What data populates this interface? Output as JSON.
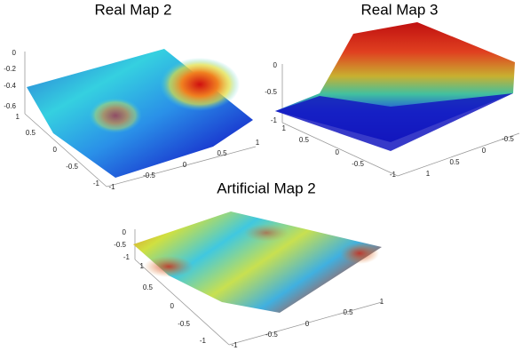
{
  "panels": [
    {
      "title": "Real Map 2",
      "z_ticks": [
        "0",
        "-0.2",
        "-0.4",
        "-0.6"
      ],
      "left_ticks": [
        "1",
        "0.5",
        "0",
        "-0.5",
        "-1"
      ],
      "bottom_ticks": [
        "-1",
        "-0.5",
        "0",
        "0.5",
        "1"
      ]
    },
    {
      "title": "Real Map 3",
      "z_ticks": [
        "0",
        "-0.5",
        "-1"
      ],
      "left_ticks": [
        "1",
        "0.5",
        "0",
        "-0.5",
        "-1"
      ],
      "bottom_ticks": [
        "1",
        "0.5",
        "0",
        "-0.5"
      ]
    },
    {
      "title": "Artificial Map 2",
      "z_ticks": [
        "0",
        "-0.5",
        "-1"
      ],
      "left_ticks": [
        "1",
        "0.5",
        "0",
        "-0.5",
        "-1"
      ],
      "bottom_ticks": [
        "-1",
        "-0.5",
        "0",
        "0.5",
        "1"
      ]
    }
  ]
}
